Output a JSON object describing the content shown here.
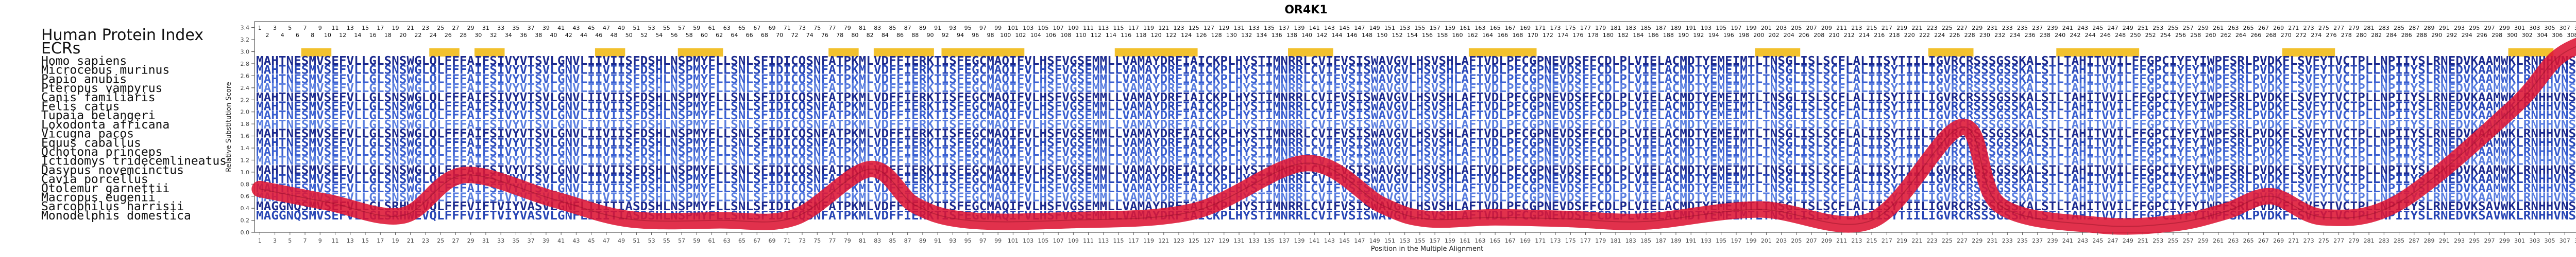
{
  "chart_data": {
    "type": "line",
    "title": "OR4K1",
    "xlabel": "Position in the Multiple Alignment",
    "ylabel": "Relative Substitution Score",
    "ylim": [
      0,
      3.5
    ],
    "xlim": [
      1,
      311
    ],
    "yticks": [
      "0.0",
      "0.2",
      "0.4",
      "0.6",
      "0.8",
      "1.0",
      "1.2",
      "1.4",
      "1.6",
      "1.8",
      "2.0",
      "2.2",
      "2.4",
      "2.6",
      "2.8",
      "3.0",
      "3.2",
      "3.4"
    ],
    "grid": false,
    "header_labels": [
      "Human Protein Index",
      "ECRs"
    ],
    "species": [
      "Homo sapiens",
      "Microcebus murinus",
      "Papio anubis",
      "Pteropus vampyrus",
      "Canis familiaris",
      "Felis catus",
      "Tupaia belangeri",
      "Loxodonta africana",
      "Vicugna pacos",
      "Equus caballus",
      "Ochotona princeps",
      "Ictidomys tridecemlineatus",
      "Dasypus novemcinctus",
      "Cavia porcellus",
      "Otolemur garnettii",
      "Macropus eugenii",
      "Sarcophilus harrisii",
      "Monodelphis domestica"
    ],
    "sequences": [
      "MAHTNESMVSEFVLLGLSNSWGLQLFFFAIFSIVYVTSVLGNVLIIVIISFDSHLNSPMYFLLSNLSFIDICQSNFATPKMLVDFFIERKTISFEGCMAQIFVLHSFVGSEMMLLVAMAYDRFIAICKPLHYSTIMNRRLCVIFVSISWAVGVLHSVSHLAFTVDLPFCGPNEVDSFFCDLPLVIELACMDTYEMEIMTLTNSGLISLSCFLALIISYTIILIGVRCRSSSGSSKALSTLTAHITVVILFFGPCIYFYIWPFSRLPVDKFLSVFYTVCTPLLNPIIYSLRNEDVKAAMWKLRNHHVNSWKN",
      "MAHTNESMVSEFVLLGLSNSWGLQLFFFAIFSIVYVTSVLGNVLIIVIISFDSHLNSPMYFLLSNLSFIDICQSNFATPKMLVDFFIERKTISFEGCMAQIFVLHSFVGSEMMLLVAMAYDRFIAICKPLHYSTIMNRRLCVIFVSISWAVGVLHSVSHLAFTVDLPFCGPNEVDSFFCDLPLVIELACMDTYEMEIMTLTNSGLISLSCFLALIISYTIILIGVRCRSSSGSSKALSTLTAHITVVILFFGPCIYFYIWPFSRLPVDKFLSVFYTVCTPLLNPIIYSLRNEDVKAAMWKLRNHHVNSWKN",
      "MAHTNESMVSEFVLLGLSNSWGLQLFFFAIFSIVYVTSVLGNVLIIVIISFDSHLNSPMYFLLSNLSFIDICQSNFATPKMLVDFFIERKTISFEGCMAQIFVLHSFVGSEMMLLVAMAYDRFIAICKPLHYSTIMNRRLCVIFVSISWAVGVLHSVSHLAFTVDLPFCGPNEVDSFFCDLPLVIELACMDTYEMEIMTLTNSGLISLSCFLALIISYTIILIGVRCRSSSGSSKALSTLTAHITVVILFFGPCIYFYIWPFSRLPVDKFLSVFYTVCTPLLNPIIYSLRNEDVKAAMWKLRNHHVNSWKN",
      "MAHTNESMVSEFVLLGLSNSWGLQLFFFAIFSIVYVTSVLGNVLIIVIISFDSHLNSPMYFLLSNLSFIDICQSNFATPKMLVDFFIERKTISFEGCMAQIFVLHSFVGSEMMLLVAMAYDRFIAICKPLHYSTIMNRRLCVIFVSISWAVGVLHSVSHLAFTVDLPFCGPNEVDSFFCDLPLVIELACMDTYEMEIMTLTNSGLISLSCFLALIISYTIILIGVRCRSSSGSSKALSTLTAHITVVILFFGPCIYFYIWPFSRLPVDKFLSVFYTVCTPLLNPIIYSLRNEDVKAAMWKLRNHHVNSWKN",
      "MAHTNESMVSEFVLLGLSNSWGLQLFFFAIFSIVYVTSVLGNVLIIVIISFDSHLNSPMYFLLSNLSFIDICQSNFATPKMLVDFFIERKTISFEGCMAQIFVLHSFVGSEMMLLVAMAYDRFIAICKPLHYSTIMNRRLCVIFVSISWAVGVLHSVSHLAFTVDLPFCGPNEVDSFFCDLPLVIELACMDTYEMEIMTLTNSGLISLSCFLALIISYTIILIGVRCRSSSGSSKALSTLTAHITVVILFFGPCIYFYIWPFSRLPVDKFLSVFYTVCTPLLNPIIYSLRNEDVKAAMWKLRNHHVNSWKN",
      "MAHTNESMVSEFVLLGLSNSWGLQLFFFAIFSIVYVTSVLGNVLIIVIISFDSHLNSPMYFLLSNLSFIDICQSNFATPKMLVDFFIERKTISFEGCMAQIFVLHSFVGSEMMLLVAMAYDRFIAICKPLHYSTIMNRRLCVIFVSISWAVGVLHSVSHLAFTVDLPFCGPNEVDSFFCDLPLVIELACMDTYEMEIMTLTNSGLISLSCFLALIISYTIILIGVRCRSSSGSSKALSTLTAHITVVILFFGPCIYFYIWPFSRLPVDKFLSVFYTVCTPLLNPIIYSLRNEDVKAAMWKLRNHHVNSWKN",
      "MAHTNESMVSEFVLLGLSNSWGLQLFFFAIFSIVYVTSVLGNVLIIVIISFDSHLNSPMYFLLSNLSFIDICQSNFATPKMLVDFFIERKTISFEGCMAQIFVLHSFVGSEMMLLVAMAYDRFIAICKPLHYSTIMNRRLCVIFVSISWAVGVLHSVSHLAFTVDLPFCGPNEVDSFFCDLPLVIELACMDTYEMEIMTLTNSGLISLSCFLALIISYTIILIGVRCRSSSGSSKALSTLTAHITVVILFFGPCIYFYIWPFSRLPVDKFLSVFYTVCTPLLNPIIYSLRNEDVKAAMWKLRNHHVNSWKN",
      "MAHTNESMVSEFVLLGLSNSWGLQLFFFAIFSIVYVTSVLGNVLIIVIISFDSHLNSPMYFLLSNLSFIDICQSNFATPKMLVDFFIERKTISFEGCMAQIFVLHSFVGSEMMLLVAMAYDRFIAICKPLHYSTIMNRRLCVIFVSISWAVGVLHSVSHLAFTVDLPFCGPNEVDSFFCDLPLVIELACMDTYEMEIMTLTNSGLISLSCFLALIISYTIILIGVRCRSSSGSSKALSTLTAHITVVILFFGPCIYFYIWPFSRLPVDKFLSVFYTVCTPLLNPIIYSLRNEDVKAAMWKLRNHHVNSWKN",
      "MAHTNESMVSEFVLLGLSNSWGLQLFFFAIFSIVYVTSVLGNVLIIVIISFDSHLNSPMYFLLSNLSFIDICQSNFATPKMLVDFFIERKTISFEGCMAQIFVLHSFVGSEMMLLVAMAYDRFIAICKPLHYSTIMNRRLCVIFVSISWAVGVLHSVSHLAFTVDLPFCGPNEVDSFFCDLPLVIELACMDTYEMEIMTLTNSGLISLSCFLALIISYTIILIGVRCRSSSGSSKALSTLTAHITVVILFFGPCIYFYIWPFSRLPVDKFLSVFYTVCTPLLNPIIYSLRNEDVKAAMWKLRNHHVNSWKN",
      "MAHTNESMVSEFVLLGLSNSWGLQLFFFAIFSIVYVTSVLGNVLIIVIISFDSHLNSPMYFLLSNLSFIDICQSNFATPKMLVDFFIERKTISFEGCMAQIFVLHSFVGSEMMLLVAMAYDRFIAICKPLHYSTIMNRRLCVIFVSISWAVGVLHSVSHLAFTVDLPFCGPNEVDSFFCDLPLVIELACMDTYEMEIMTLTNSGLISLSCFLALIISYTIILIGVRCRSSSGSSKALSTLTAHITVVILFFGPCIYFYIWPFSRLPVDKFLSVFYTVCTPLLNPIIYSLRNEDVKAAMWKLRNHHVNSWKN",
      "MAHTNESMVSEFVLLGLSNSWGLQLFFFAIFSIVYVTSVLGNVLIIVIISFDSHLNSPMYFLLSNLSFIDICQSNFATPKMLVDFFIERKTISFEGCMAQIFVLHSFVGSEMMLLVAMAYDRFIAICKPLHYSTIMNRRLCVIFVSISWAVGVLHSVSHLAFTVDLPFCGPNEVDSFFCDLPLVIELACMDTYEMEIMTLTNSGLISLSCFLALIISYTIILIGVRCRSSSGSSKALSTLTAHITVVILFFGPCIYFYIWPFSRLPVDKFLSVFYTVCTPLLNPIIYSLRNEDVKAAMWKLRNHHVNSWKN",
      "MAHTNESMVSEFVLLGLSNSWGLQLFFFAIFSIVYVTSVLGNVLIIVIISFDSHLNSPMYFLLSNLSFIDICQSNFATPKMLVDFFIERKTISFEGCMAQIFVLHSFVGSEMMLLVAMAYDRFIAICKPLHYSTIMNRRLCVIFVSISWAVGVLHSVSHLAFTVDLPFCGPNEVDSFFCDLPLVIELACMDTYEMEIMTLTNSGLISLSCFLALIISYTIILIGVRCRSSSGSSKALSTLTAHITVVILFFGPCIYFYIWPFSRLPVDKFLSVFYTVCTPLLNPIIYSLRNEDVKAAMWKLRNHHVNSWKN",
      "MAHTNESMVSEFVLLGLSNSWGLQLFFFAIFSIVYVTSVLGNVLIIVIISFDSHLNSPMYFLLSNLSFIDICQSNFATPKMLVDFFIERKTISFEGCMAQIFVLHSFVGSEMMLLVAMAYDRFIAICKPLHYSTIMNRRLCVIFVSISWAVGVLHSVSHLAFTVDLPFCGPNEVDSFFCDLPLVIELACMDTYEMEIMTLTNSGLISLSCFLALIISYTIILIGVRCRSSSGSSKALSTLTAHITVVILFFGPCIYFYIWPFSRLPVDKFLSVFYTVCTPLLNPIIYSLRNEDVKAAMWKLRNHHVNSWKN",
      "MAHTNESMVSEFVLLGLSNSWGLQLFFFAIFSIVYVTSVLGNVLIIVIISFDSHLNSPMYFLLSNLSFIDICQSNFATPKMLVDFFIERKTISFEGCMAQIFVLHSFVGSEMMLLVAMAYDRFIAICKPLHYSTIMNRRLCVIFVSISWAVGVLHSVSHLAFTVDLPFCGPNEVDSFFCDLPLVIELACMDTYEMEIMTLTNSGLISLSCFLALIISYTIILIGVRCRSSSGSSKALSTLTAHITVVILFFGPCIYFYIWPFSRLPVDKFLSVFYTVCTPLLNPIIYSLRNEDVKAAMWKLRNHHVNSWKN",
      "MAHTNESMVSEFVLLGLSNSWGLQLFFFAIFSIVYVTSVLGNVLIIVIISFDSHLNSPMYFLLSNLSFIDICQSNFATPKMLVDFFIERKTISFEGCMAQIFVLHSFVGSEMMLLVAMAYDRFIAICKPLHYSTIMNRRLCVIFVSISWAVGVLHSVSHLAFTVDLPFCGPNEVDSFFCDLPLVIELACMDTYEMEIMTLTNSGLISLSCFLALIISYTIILIGVRCRSSSGSSKALSTLTAHITVVILFFGPCIYFYIWPFSRLPVDKFLSVFYTVCTPLLNPIIYSLRNEDVKAAMWKLRNHHVNSWKN",
      "MAHTNESMVSEFVLLGLSNSWGLQLFFFAIFSIVYVTSVLGNVLIIVIISFDSHLNSPMYFLLSNLSFIDICQSNFATPKMLVDFFIERKTISFEGCMAQIFVLHSFVGSEMMLLVAMAYDRFIAICKPLHYSTIMNRRLCVIFVSISWAVGVLHSVSHLAFTVDLPFCGPNEVDSFFCDLPLVIELACMDTYEMEIMTLTNSGLISLSCFLALIISYTIILIGVRCRSSSGSSKALSTLTAHITVVILFFGPCIYFYIWPFSRLPVDKFLSVFYTVCTPLLNPIIYSLRNEDVKAAMWKLRNHHVNSWKN",
      "MAGGNQSMVSEFVLLGLSRHWEVQLFFFVIFTVIYVASVLGNFLIIITIASDSHLNSPMYFLLSNLSFIDICQSNFATPKMLVDFFIERKTISFEGCMAQIFVLHSFVGSEMMLLVAMAYDRFIAICKPLHYSTIMNRRLCVIFVSISWAVGVLHSVSHLAFTVDLPFCGPNEVDSFFCDLPLVIELACMDTYEMEIMTLTNSGLISLSCFLALIISYTIILIGVRCRSSSGSSKALSTLTAHITVVILFFGPCIYFYIWPFSRLPVDKFLSVFYTVCTPLLNPIIYSLRNEDVKSAVWKLRNHHVNSWKN",
      "MAGGNQSMVSEFVLLGLSRHWEVQLFFFVIFTVIYVASVLGNFLIIITIASDSHLNSPMYFLLSNLSFIDICQSNFATPKMLVDFFIERKTISFEGCMAQIFVLHSFVGSEMMLLVAMAYDRFIAICKPLHYSTIMNRRLCVIFVSISWAVGVLHSVSHLAFTVDLPFCGPNEVDSFFCDLPLVIELACMDTYEMEIMTLTNSGLISLSCFLALIISYTIILIGVRCRSSSGSSKALSTLTAHITVVILFFGPCIYFYIWPFSRLPVDKFLSVFYTVCTPLLNPIIYSLRNEDVKSAVWKLRNHHVNSWKN"
    ],
    "ecr_ranges": [
      [
        7,
        10
      ],
      [
        24,
        27
      ],
      [
        30,
        33
      ],
      [
        46,
        49
      ],
      [
        57,
        62
      ],
      [
        77,
        80
      ],
      [
        83,
        90
      ],
      [
        92,
        102
      ],
      [
        115,
        125
      ],
      [
        138,
        143
      ],
      [
        162,
        170
      ],
      [
        200,
        205
      ],
      [
        223,
        228
      ],
      [
        240,
        250
      ],
      [
        270,
        276
      ],
      [
        300,
        305
      ]
    ],
    "x": [
      1,
      10,
      20,
      28,
      40,
      50,
      62,
      72,
      82,
      88,
      95,
      108,
      125,
      140,
      150,
      156,
      165,
      175,
      185,
      200,
      215,
      227,
      232,
      245,
      255,
      262,
      268,
      275,
      285,
      300,
      306,
      311
    ],
    "values": [
      0.72,
      0.5,
      0.28,
      0.95,
      0.55,
      0.22,
      0.2,
      0.25,
      1.05,
      0.45,
      0.2,
      0.2,
      0.35,
      1.15,
      0.45,
      0.22,
      0.25,
      0.22,
      0.18,
      0.38,
      0.2,
      1.75,
      0.45,
      0.12,
      0.15,
      0.35,
      0.6,
      0.25,
      0.5,
      2.05,
      2.9,
      3.2
    ]
  }
}
